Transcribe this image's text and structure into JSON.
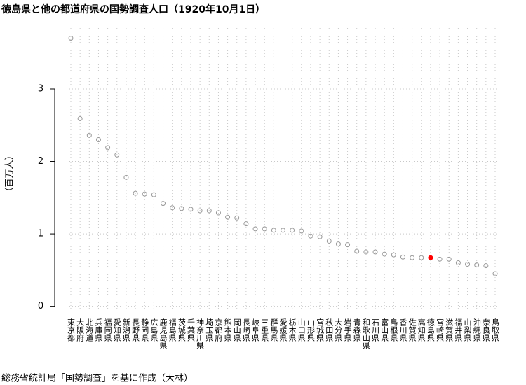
{
  "chart_data": {
    "type": "dot",
    "title": "徳島県と他の都道府県の国勢調査人口（1920年10月1日）",
    "y_label": "（百万人）",
    "caption": "総務省統計局「国勢調査」を基に作成（大林）",
    "categories": [
      "東京都",
      "大阪府",
      "北海道",
      "兵庫県",
      "福岡県",
      "愛知県",
      "新潟県",
      "長野県",
      "静岡県",
      "広島県",
      "鹿児島県",
      "福島県",
      "茨城県",
      "千葉県",
      "神奈川県",
      "埼玉県",
      "京都府",
      "熊本県",
      "岡山県",
      "長崎県",
      "岐阜県",
      "三重県",
      "群馬県",
      "愛媛県",
      "栃木県",
      "山口県",
      "山形県",
      "宮城県",
      "秋田県",
      "大分県",
      "岩手県",
      "青森県",
      "和歌山県",
      "石川県",
      "富山県",
      "島根県",
      "香川県",
      "佐賀県",
      "高知県",
      "徳島県",
      "宮崎県",
      "滋賀県",
      "福井県",
      "山梨県",
      "沖縄県",
      "奈良県",
      "鳥取県"
    ],
    "values": [
      3.7,
      2.59,
      2.36,
      2.3,
      2.19,
      2.09,
      1.78,
      1.56,
      1.55,
      1.54,
      1.42,
      1.36,
      1.35,
      1.34,
      1.32,
      1.32,
      1.29,
      1.23,
      1.22,
      1.14,
      1.07,
      1.07,
      1.05,
      1.05,
      1.05,
      1.04,
      0.97,
      0.96,
      0.9,
      0.86,
      0.85,
      0.76,
      0.75,
      0.75,
      0.72,
      0.71,
      0.68,
      0.67,
      0.67,
      0.67,
      0.65,
      0.65,
      0.6,
      0.58,
      0.57,
      0.56,
      0.45
    ],
    "color": "#999999",
    "highlight": "徳島県",
    "highlight_color": "#ff0000",
    "ylim": [
      -0.1,
      3.84
    ],
    "yticks": [
      0,
      1,
      2,
      3
    ],
    "grid": true
  }
}
